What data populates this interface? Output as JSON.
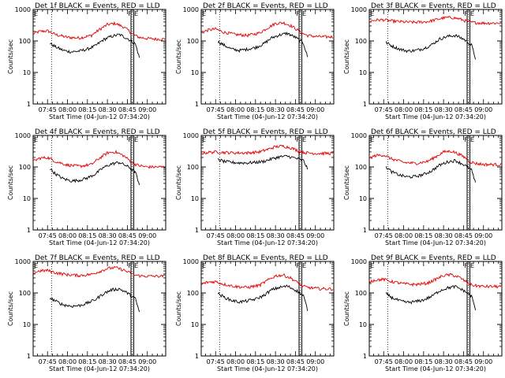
{
  "colors": {
    "events": "#000000",
    "lld": "#e00000",
    "axes": "#000000",
    "background": "#ffffff"
  },
  "chart_data": [
    {
      "type": "line",
      "title": "Det 1f BLACK = Events, RED = LLD",
      "xlabel": "Start Time (04-Jun-12 07:34:20)",
      "ylabel": "Counts/sec",
      "xlim": [
        7.57,
        9.23
      ],
      "ylim": [
        1,
        1000
      ],
      "yscale": "log",
      "xticks": [
        "07:45",
        "08:00",
        "08:15",
        "08:30",
        "08:45",
        "09:00"
      ],
      "xtick_values": [
        7.75,
        8.0,
        8.25,
        8.5,
        8.75,
        9.0
      ],
      "yticks": [
        "1",
        "10",
        "100",
        "1000"
      ],
      "flags": [
        "E",
        "F",
        "E"
      ],
      "dotted_lines_x": [
        7.8,
        8.81
      ],
      "solid_lines_x": [
        8.795,
        8.83
      ],
      "series": [
        {
          "name": "LLD",
          "color": "#e00000",
          "x": [
            7.57,
            7.65,
            7.75,
            7.85,
            8.0,
            8.15,
            8.3,
            8.4,
            8.5,
            8.6,
            8.7,
            8.78,
            8.82,
            8.9,
            9.0,
            9.1,
            9.22
          ],
          "values": [
            170,
            200,
            210,
            160,
            130,
            125,
            150,
            230,
            330,
            360,
            280,
            200,
            160,
            130,
            120,
            115,
            115
          ]
        },
        {
          "name": "Events",
          "color": "#000000",
          "x": [
            7.78,
            7.85,
            7.95,
            8.05,
            8.15,
            8.25,
            8.35,
            8.45,
            8.55,
            8.65,
            8.75,
            8.85,
            8.9
          ],
          "values": [
            85,
            65,
            50,
            45,
            48,
            55,
            70,
            110,
            140,
            160,
            120,
            80,
            30
          ]
        }
      ]
    },
    {
      "type": "line",
      "title": "Det 2f BLACK = Events, RED = LLD",
      "xlabel": "Start Time (04-Jun-12 07:34:20)",
      "ylabel": "Counts/sec",
      "xlim": [
        7.57,
        9.23
      ],
      "ylim": [
        1,
        1000
      ],
      "yscale": "log",
      "xticks": [
        "07:45",
        "08:00",
        "08:15",
        "08:30",
        "08:45",
        "09:00"
      ],
      "xtick_values": [
        7.75,
        8.0,
        8.25,
        8.5,
        8.75,
        9.0
      ],
      "yticks": [
        "1",
        "10",
        "100",
        "1000"
      ],
      "flags": [
        "E",
        "F",
        "E"
      ],
      "dotted_lines_x": [
        7.8,
        8.81
      ],
      "solid_lines_x": [
        8.795,
        8.83
      ],
      "series": [
        {
          "name": "LLD",
          "color": "#e00000",
          "x": [
            7.57,
            7.65,
            7.75,
            7.85,
            8.0,
            8.15,
            8.3,
            8.4,
            8.5,
            8.6,
            8.7,
            8.78,
            8.82,
            8.9,
            9.0,
            9.1,
            9.22
          ],
          "values": [
            180,
            220,
            240,
            190,
            160,
            150,
            180,
            260,
            360,
            380,
            300,
            220,
            180,
            150,
            140,
            135,
            135
          ]
        },
        {
          "name": "Events",
          "color": "#000000",
          "x": [
            7.78,
            7.85,
            7.95,
            8.05,
            8.15,
            8.25,
            8.35,
            8.45,
            8.55,
            8.65,
            8.75,
            8.85,
            8.9
          ],
          "values": [
            95,
            75,
            55,
            50,
            55,
            62,
            80,
            125,
            155,
            175,
            130,
            85,
            32
          ]
        }
      ]
    },
    {
      "type": "line",
      "title": "Det 3f BLACK = Events, RED = LLD",
      "xlabel": "Start Time (04-Jun-12 07:34:20)",
      "ylabel": "Counts/sec",
      "xlim": [
        7.57,
        9.23
      ],
      "ylim": [
        1,
        1000
      ],
      "yscale": "log",
      "xticks": [
        "07:45",
        "08:00",
        "08:15",
        "08:30",
        "08:45",
        "09:00"
      ],
      "xtick_values": [
        7.75,
        8.0,
        8.25,
        8.5,
        8.75,
        9.0
      ],
      "yticks": [
        "1",
        "10",
        "100",
        "1000"
      ],
      "flags": [
        "E",
        "F",
        "E"
      ],
      "dotted_lines_x": [
        7.8,
        8.81
      ],
      "solid_lines_x": [
        8.795,
        8.83
      ],
      "series": [
        {
          "name": "LLD",
          "color": "#e00000",
          "x": [
            7.57,
            7.65,
            7.75,
            7.85,
            8.0,
            8.15,
            8.3,
            8.4,
            8.5,
            8.6,
            8.7,
            8.78,
            8.82,
            8.9,
            9.0,
            9.1,
            9.22
          ],
          "values": [
            420,
            460,
            470,
            430,
            400,
            390,
            410,
            470,
            540,
            560,
            500,
            430,
            400,
            380,
            370,
            370,
            370
          ]
        },
        {
          "name": "Events",
          "color": "#000000",
          "x": [
            7.78,
            7.85,
            7.95,
            8.05,
            8.15,
            8.25,
            8.35,
            8.45,
            8.55,
            8.65,
            8.75,
            8.85,
            8.9
          ],
          "values": [
            90,
            70,
            55,
            48,
            50,
            58,
            75,
            115,
            140,
            150,
            115,
            75,
            28
          ]
        }
      ]
    },
    {
      "type": "line",
      "title": "Det 4f BLACK = Events, RED = LLD",
      "xlabel": "Start Time (04-Jun-12 07:34:20)",
      "ylabel": "Counts/sec",
      "xlim": [
        7.57,
        9.23
      ],
      "ylim": [
        1,
        1000
      ],
      "yscale": "log",
      "xticks": [
        "07:45",
        "08:00",
        "08:15",
        "08:30",
        "08:45",
        "09:00"
      ],
      "xtick_values": [
        7.75,
        8.0,
        8.25,
        8.5,
        8.75,
        9.0
      ],
      "yticks": [
        "1",
        "10",
        "100",
        "1000"
      ],
      "flags": [
        "E",
        "F",
        "E"
      ],
      "dotted_lines_x": [
        7.8,
        8.81
      ],
      "solid_lines_x": [
        8.795,
        8.83
      ],
      "series": [
        {
          "name": "LLD",
          "color": "#e00000",
          "x": [
            7.57,
            7.65,
            7.75,
            7.85,
            8.0,
            8.15,
            8.3,
            8.4,
            8.5,
            8.6,
            8.7,
            8.78,
            8.82,
            8.9,
            9.0,
            9.1,
            9.22
          ],
          "values": [
            150,
            190,
            200,
            150,
            115,
            105,
            120,
            190,
            280,
            300,
            230,
            160,
            130,
            110,
            100,
            100,
            100
          ]
        },
        {
          "name": "Events",
          "color": "#000000",
          "x": [
            7.78,
            7.85,
            7.95,
            8.05,
            8.15,
            8.25,
            8.35,
            8.45,
            8.55,
            8.65,
            8.75,
            8.85,
            8.9
          ],
          "values": [
            90,
            60,
            42,
            36,
            38,
            45,
            60,
            95,
            125,
            140,
            105,
            70,
            25
          ]
        }
      ]
    },
    {
      "type": "line",
      "title": "Det 5f BLACK = Events, RED = LLD",
      "xlabel": "Start Time (04-Jun-12 07:34:20)",
      "ylabel": "Counts/sec",
      "xlim": [
        7.57,
        9.23
      ],
      "ylim": [
        1,
        1000
      ],
      "yscale": "log",
      "xticks": [
        "07:45",
        "08:00",
        "08:15",
        "08:30",
        "08:45",
        "09:00"
      ],
      "xtick_values": [
        7.75,
        8.0,
        8.25,
        8.5,
        8.75,
        9.0
      ],
      "yticks": [
        "1",
        "10",
        "100",
        "1000"
      ],
      "flags": [
        "E",
        "F",
        "E"
      ],
      "dotted_lines_x": [
        7.8,
        8.81
      ],
      "solid_lines_x": [
        8.795,
        8.83
      ],
      "series": [
        {
          "name": "LLD",
          "color": "#e00000",
          "x": [
            7.57,
            7.65,
            7.75,
            7.85,
            8.0,
            8.15,
            8.3,
            8.4,
            8.5,
            8.6,
            8.7,
            8.78,
            8.82,
            8.9,
            9.0,
            9.1,
            9.22
          ],
          "values": [
            270,
            290,
            300,
            290,
            280,
            280,
            300,
            360,
            440,
            460,
            400,
            330,
            300,
            280,
            270,
            270,
            270
          ]
        },
        {
          "name": "Events",
          "color": "#000000",
          "x": [
            7.78,
            7.85,
            7.95,
            8.05,
            8.15,
            8.25,
            8.35,
            8.45,
            8.55,
            8.65,
            8.75,
            8.85,
            8.9
          ],
          "values": [
            175,
            150,
            140,
            135,
            135,
            140,
            150,
            180,
            210,
            220,
            190,
            160,
            90
          ]
        }
      ]
    },
    {
      "type": "line",
      "title": "Det 6f BLACK = Events, RED = LLD",
      "xlabel": "Start Time (04-Jun-12 07:34:20)",
      "ylabel": "Counts/sec",
      "xlim": [
        7.57,
        9.23
      ],
      "ylim": [
        1,
        1000
      ],
      "yscale": "log",
      "xticks": [
        "07:45",
        "08:00",
        "08:15",
        "08:30",
        "08:45",
        "09:00"
      ],
      "xtick_values": [
        7.75,
        8.0,
        8.25,
        8.5,
        8.75,
        9.0
      ],
      "yticks": [
        "1",
        "10",
        "100",
        "1000"
      ],
      "flags": [
        "E",
        "F",
        "E"
      ],
      "dotted_lines_x": [
        7.8,
        8.81
      ],
      "solid_lines_x": [
        8.795,
        8.83
      ],
      "series": [
        {
          "name": "LLD",
          "color": "#e00000",
          "x": [
            7.57,
            7.65,
            7.75,
            7.85,
            8.0,
            8.15,
            8.3,
            8.4,
            8.5,
            8.6,
            8.7,
            8.78,
            8.82,
            8.9,
            9.0,
            9.1,
            9.22
          ],
          "values": [
            190,
            230,
            240,
            180,
            140,
            130,
            150,
            210,
            300,
            320,
            250,
            190,
            150,
            130,
            120,
            120,
            120
          ]
        },
        {
          "name": "Events",
          "color": "#000000",
          "x": [
            7.78,
            7.85,
            7.95,
            8.05,
            8.15,
            8.25,
            8.35,
            8.45,
            8.55,
            8.65,
            8.75,
            8.85,
            8.9
          ],
          "values": [
            100,
            70,
            55,
            48,
            50,
            58,
            75,
            115,
            145,
            160,
            120,
            80,
            30
          ]
        }
      ]
    },
    {
      "type": "line",
      "title": "Det 7f BLACK = Events, RED = LLD",
      "xlabel": "Start Time (04-Jun-12 07:34:20)",
      "ylabel": "Counts/sec",
      "xlim": [
        7.57,
        9.23
      ],
      "ylim": [
        1,
        1000
      ],
      "yscale": "log",
      "xticks": [
        "07:45",
        "08:00",
        "08:15",
        "08:30",
        "08:45",
        "09:00"
      ],
      "xtick_values": [
        7.75,
        8.0,
        8.25,
        8.5,
        8.75,
        9.0
      ],
      "yticks": [
        "1",
        "10",
        "100",
        "1000"
      ],
      "flags": [
        "E",
        "F",
        "E"
      ],
      "dotted_lines_x": [
        7.8,
        8.81
      ],
      "solid_lines_x": [
        8.795,
        8.83
      ],
      "series": [
        {
          "name": "LLD",
          "color": "#e00000",
          "x": [
            7.57,
            7.65,
            7.75,
            7.85,
            8.0,
            8.15,
            8.3,
            8.4,
            8.5,
            8.6,
            8.7,
            8.78,
            8.82,
            8.9,
            9.0,
            9.1,
            9.22
          ],
          "values": [
            430,
            500,
            520,
            440,
            380,
            360,
            390,
            480,
            600,
            640,
            540,
            430,
            380,
            350,
            340,
            340,
            340
          ]
        },
        {
          "name": "Events",
          "color": "#000000",
          "x": [
            7.78,
            7.85,
            7.95,
            8.05,
            8.15,
            8.25,
            8.35,
            8.45,
            8.55,
            8.65,
            8.75,
            8.85,
            8.9
          ],
          "values": [
            70,
            55,
            42,
            38,
            40,
            48,
            62,
            95,
            125,
            135,
            100,
            65,
            25
          ]
        }
      ]
    },
    {
      "type": "line",
      "title": "Det 8f BLACK = Events, RED = LLD",
      "xlabel": "Start Time (04-Jun-12 07:34:20)",
      "ylabel": "Counts/sec",
      "xlim": [
        7.57,
        9.23
      ],
      "ylim": [
        1,
        1000
      ],
      "yscale": "log",
      "xticks": [
        "07:45",
        "08:00",
        "08:15",
        "08:30",
        "08:45",
        "09:00"
      ],
      "xtick_values": [
        7.75,
        8.0,
        8.25,
        8.5,
        8.75,
        9.0
      ],
      "yticks": [
        "1",
        "10",
        "100",
        "1000"
      ],
      "flags": [
        "E",
        "F",
        "E"
      ],
      "dotted_lines_x": [
        7.8,
        8.81
      ],
      "solid_lines_x": [
        8.795,
        8.83
      ],
      "series": [
        {
          "name": "LLD",
          "color": "#e00000",
          "x": [
            7.57,
            7.65,
            7.75,
            7.85,
            8.0,
            8.15,
            8.3,
            8.4,
            8.5,
            8.6,
            8.7,
            8.78,
            8.82,
            8.9,
            9.0,
            9.1,
            9.22
          ],
          "values": [
            190,
            220,
            230,
            190,
            160,
            150,
            175,
            250,
            350,
            370,
            290,
            210,
            170,
            150,
            140,
            135,
            135
          ]
        },
        {
          "name": "Events",
          "color": "#000000",
          "x": [
            7.78,
            7.85,
            7.95,
            8.05,
            8.15,
            8.25,
            8.35,
            8.45,
            8.55,
            8.65,
            8.75,
            8.85,
            8.9
          ],
          "values": [
            95,
            75,
            58,
            52,
            56,
            64,
            82,
            125,
            150,
            165,
            125,
            82,
            30
          ]
        }
      ]
    },
    {
      "type": "line",
      "title": "Det 9f BLACK = Events, RED = LLD",
      "xlabel": "Start Time (04-Jun-12 07:34:20)",
      "ylabel": "Counts/sec",
      "xlim": [
        7.57,
        9.23
      ],
      "ylim": [
        1,
        1000
      ],
      "yscale": "log",
      "xticks": [
        "07:45",
        "08:00",
        "08:15",
        "08:30",
        "08:45",
        "09:00"
      ],
      "xtick_values": [
        7.75,
        8.0,
        8.25,
        8.5,
        8.75,
        9.0
      ],
      "yticks": [
        "1",
        "10",
        "100",
        "1000"
      ],
      "flags": [
        "E",
        "F",
        "E"
      ],
      "dotted_lines_x": [
        7.8,
        8.81
      ],
      "solid_lines_x": [
        8.795,
        8.83
      ],
      "series": [
        {
          "name": "LLD",
          "color": "#e00000",
          "x": [
            7.57,
            7.65,
            7.75,
            7.85,
            8.0,
            8.15,
            8.3,
            8.4,
            8.5,
            8.6,
            8.7,
            8.78,
            8.82,
            8.9,
            9.0,
            9.1,
            9.22
          ],
          "values": [
            230,
            260,
            270,
            230,
            195,
            185,
            205,
            270,
            360,
            380,
            310,
            230,
            190,
            170,
            160,
            160,
            160
          ]
        },
        {
          "name": "Events",
          "color": "#000000",
          "x": [
            7.78,
            7.85,
            7.95,
            8.05,
            8.15,
            8.25,
            8.35,
            8.45,
            8.55,
            8.65,
            8.75,
            8.85,
            8.9
          ],
          "values": [
            95,
            72,
            56,
            50,
            53,
            60,
            78,
            118,
            145,
            160,
            120,
            80,
            30
          ]
        }
      ]
    }
  ]
}
